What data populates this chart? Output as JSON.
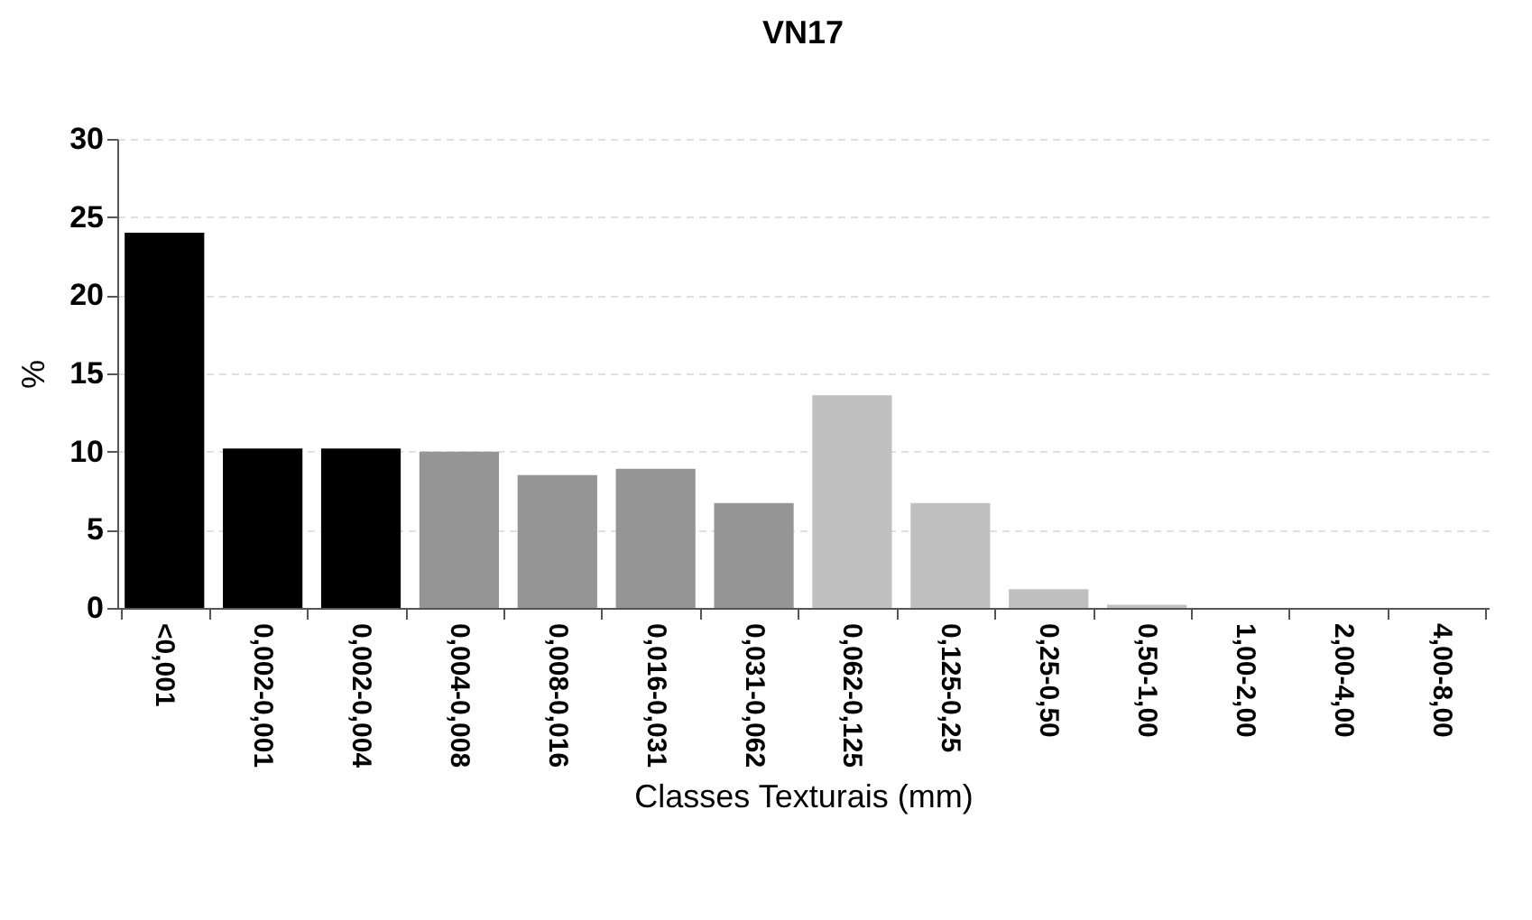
{
  "chart_data": {
    "type": "bar",
    "title": "VN17",
    "xlabel": "Classes Texturais (mm)",
    "ylabel": "%",
    "categories": [
      "<0,001",
      "0,002-0,001",
      "0,002-0,004",
      "0,004-0,008",
      "0,008-0,016",
      "0,016-0,031",
      "0,031-0,062",
      "0,062-0,125",
      "0,125-0,25",
      "0,25-0,50",
      "0,50-1,00",
      "1,00-2,00",
      "2,00-4,00",
      "4,00-8,00"
    ],
    "values": [
      24.0,
      10.2,
      10.2,
      10.0,
      8.5,
      8.9,
      6.7,
      13.6,
      6.7,
      1.2,
      0.2,
      0,
      0,
      0
    ],
    "colors": [
      "#000000",
      "#000000",
      "#000000",
      "#959595",
      "#959595",
      "#959595",
      "#959595",
      "#c0c0c0",
      "#c0c0c0",
      "#c0c0c0",
      "#c0c0c0",
      "#c0c0c0",
      "#c0c0c0",
      "#c0c0c0"
    ],
    "ylim": [
      0,
      30
    ],
    "yticks": [
      0,
      5,
      10,
      15,
      20,
      25,
      30
    ],
    "grid": "y",
    "legend": false
  }
}
